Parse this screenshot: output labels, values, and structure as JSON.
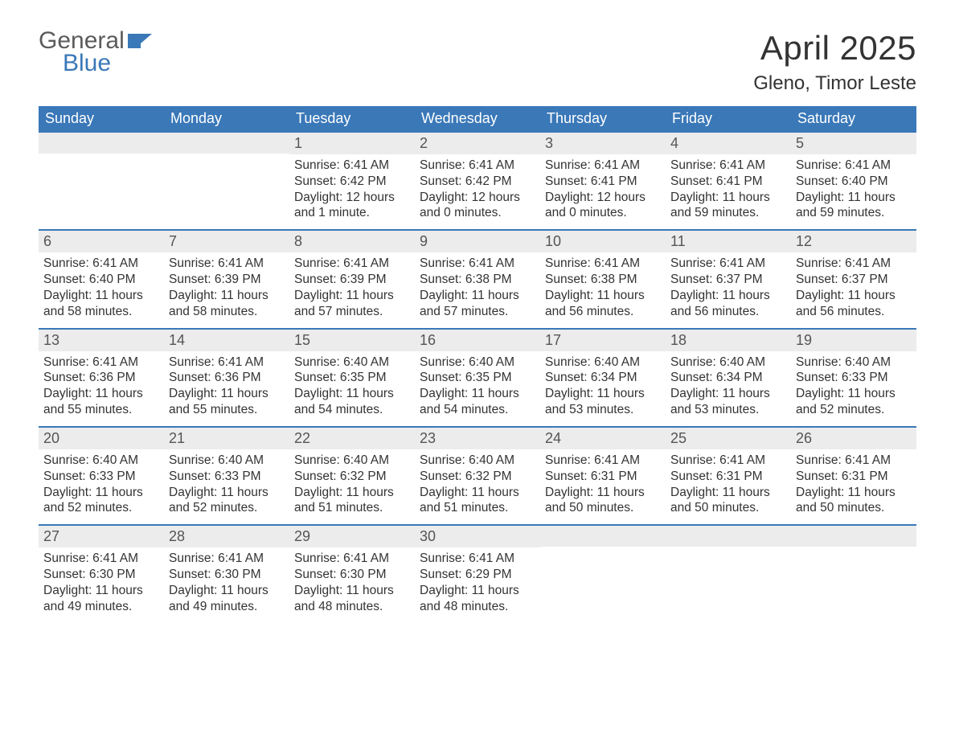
{
  "logo": {
    "word1": "General",
    "word2": "Blue"
  },
  "title": "April 2025",
  "location": "Gleno, Timor Leste",
  "colors": {
    "header_bg": "#3a78b8",
    "header_text": "#ffffff",
    "daynum_bg": "#ececec",
    "text": "#333333",
    "logo_gray": "#5b5b5b",
    "logo_blue": "#3a78b8",
    "page_bg": "#ffffff"
  },
  "typography": {
    "title_fontsize": 42,
    "location_fontsize": 24,
    "dow_fontsize": 18,
    "daynum_fontsize": 18,
    "detail_fontsize": 15.5,
    "logo_fontsize": 30
  },
  "calendar": {
    "type": "table",
    "day_names": [
      "Sunday",
      "Monday",
      "Tuesday",
      "Wednesday",
      "Thursday",
      "Friday",
      "Saturday"
    ],
    "weeks": [
      [
        null,
        null,
        {
          "n": "1",
          "sunrise": "Sunrise: 6:41 AM",
          "sunset": "Sunset: 6:42 PM",
          "daylight": "Daylight: 12 hours and 1 minute."
        },
        {
          "n": "2",
          "sunrise": "Sunrise: 6:41 AM",
          "sunset": "Sunset: 6:42 PM",
          "daylight": "Daylight: 12 hours and 0 minutes."
        },
        {
          "n": "3",
          "sunrise": "Sunrise: 6:41 AM",
          "sunset": "Sunset: 6:41 PM",
          "daylight": "Daylight: 12 hours and 0 minutes."
        },
        {
          "n": "4",
          "sunrise": "Sunrise: 6:41 AM",
          "sunset": "Sunset: 6:41 PM",
          "daylight": "Daylight: 11 hours and 59 minutes."
        },
        {
          "n": "5",
          "sunrise": "Sunrise: 6:41 AM",
          "sunset": "Sunset: 6:40 PM",
          "daylight": "Daylight: 11 hours and 59 minutes."
        }
      ],
      [
        {
          "n": "6",
          "sunrise": "Sunrise: 6:41 AM",
          "sunset": "Sunset: 6:40 PM",
          "daylight": "Daylight: 11 hours and 58 minutes."
        },
        {
          "n": "7",
          "sunrise": "Sunrise: 6:41 AM",
          "sunset": "Sunset: 6:39 PM",
          "daylight": "Daylight: 11 hours and 58 minutes."
        },
        {
          "n": "8",
          "sunrise": "Sunrise: 6:41 AM",
          "sunset": "Sunset: 6:39 PM",
          "daylight": "Daylight: 11 hours and 57 minutes."
        },
        {
          "n": "9",
          "sunrise": "Sunrise: 6:41 AM",
          "sunset": "Sunset: 6:38 PM",
          "daylight": "Daylight: 11 hours and 57 minutes."
        },
        {
          "n": "10",
          "sunrise": "Sunrise: 6:41 AM",
          "sunset": "Sunset: 6:38 PM",
          "daylight": "Daylight: 11 hours and 56 minutes."
        },
        {
          "n": "11",
          "sunrise": "Sunrise: 6:41 AM",
          "sunset": "Sunset: 6:37 PM",
          "daylight": "Daylight: 11 hours and 56 minutes."
        },
        {
          "n": "12",
          "sunrise": "Sunrise: 6:41 AM",
          "sunset": "Sunset: 6:37 PM",
          "daylight": "Daylight: 11 hours and 56 minutes."
        }
      ],
      [
        {
          "n": "13",
          "sunrise": "Sunrise: 6:41 AM",
          "sunset": "Sunset: 6:36 PM",
          "daylight": "Daylight: 11 hours and 55 minutes."
        },
        {
          "n": "14",
          "sunrise": "Sunrise: 6:41 AM",
          "sunset": "Sunset: 6:36 PM",
          "daylight": "Daylight: 11 hours and 55 minutes."
        },
        {
          "n": "15",
          "sunrise": "Sunrise: 6:40 AM",
          "sunset": "Sunset: 6:35 PM",
          "daylight": "Daylight: 11 hours and 54 minutes."
        },
        {
          "n": "16",
          "sunrise": "Sunrise: 6:40 AM",
          "sunset": "Sunset: 6:35 PM",
          "daylight": "Daylight: 11 hours and 54 minutes."
        },
        {
          "n": "17",
          "sunrise": "Sunrise: 6:40 AM",
          "sunset": "Sunset: 6:34 PM",
          "daylight": "Daylight: 11 hours and 53 minutes."
        },
        {
          "n": "18",
          "sunrise": "Sunrise: 6:40 AM",
          "sunset": "Sunset: 6:34 PM",
          "daylight": "Daylight: 11 hours and 53 minutes."
        },
        {
          "n": "19",
          "sunrise": "Sunrise: 6:40 AM",
          "sunset": "Sunset: 6:33 PM",
          "daylight": "Daylight: 11 hours and 52 minutes."
        }
      ],
      [
        {
          "n": "20",
          "sunrise": "Sunrise: 6:40 AM",
          "sunset": "Sunset: 6:33 PM",
          "daylight": "Daylight: 11 hours and 52 minutes."
        },
        {
          "n": "21",
          "sunrise": "Sunrise: 6:40 AM",
          "sunset": "Sunset: 6:33 PM",
          "daylight": "Daylight: 11 hours and 52 minutes."
        },
        {
          "n": "22",
          "sunrise": "Sunrise: 6:40 AM",
          "sunset": "Sunset: 6:32 PM",
          "daylight": "Daylight: 11 hours and 51 minutes."
        },
        {
          "n": "23",
          "sunrise": "Sunrise: 6:40 AM",
          "sunset": "Sunset: 6:32 PM",
          "daylight": "Daylight: 11 hours and 51 minutes."
        },
        {
          "n": "24",
          "sunrise": "Sunrise: 6:41 AM",
          "sunset": "Sunset: 6:31 PM",
          "daylight": "Daylight: 11 hours and 50 minutes."
        },
        {
          "n": "25",
          "sunrise": "Sunrise: 6:41 AM",
          "sunset": "Sunset: 6:31 PM",
          "daylight": "Daylight: 11 hours and 50 minutes."
        },
        {
          "n": "26",
          "sunrise": "Sunrise: 6:41 AM",
          "sunset": "Sunset: 6:31 PM",
          "daylight": "Daylight: 11 hours and 50 minutes."
        }
      ],
      [
        {
          "n": "27",
          "sunrise": "Sunrise: 6:41 AM",
          "sunset": "Sunset: 6:30 PM",
          "daylight": "Daylight: 11 hours and 49 minutes."
        },
        {
          "n": "28",
          "sunrise": "Sunrise: 6:41 AM",
          "sunset": "Sunset: 6:30 PM",
          "daylight": "Daylight: 11 hours and 49 minutes."
        },
        {
          "n": "29",
          "sunrise": "Sunrise: 6:41 AM",
          "sunset": "Sunset: 6:30 PM",
          "daylight": "Daylight: 11 hours and 48 minutes."
        },
        {
          "n": "30",
          "sunrise": "Sunrise: 6:41 AM",
          "sunset": "Sunset: 6:29 PM",
          "daylight": "Daylight: 11 hours and 48 minutes."
        },
        null,
        null,
        null
      ]
    ]
  }
}
